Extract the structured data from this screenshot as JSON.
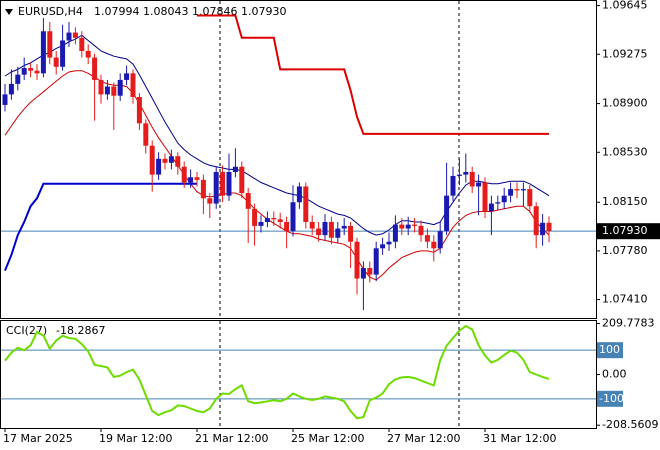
{
  "chart_data": [
    {
      "type": "candlestick",
      "title": "EURUSD,H4",
      "categories": [
        "17 Mar 2025",
        null,
        null,
        null,
        null,
        null,
        null,
        null,
        null,
        null,
        null,
        null,
        null,
        null,
        null,
        "19 Mar 12:00",
        null,
        null,
        null,
        null,
        null,
        null,
        null,
        null,
        null,
        null,
        null,
        null,
        null,
        null,
        "21 Mar 12:00",
        null,
        null,
        null,
        null,
        null,
        null,
        null,
        null,
        null,
        null,
        null,
        null,
        null,
        null,
        "25 Mar 12:00",
        null,
        null,
        null,
        null,
        null,
        null,
        null,
        null,
        null,
        null,
        null,
        null,
        null,
        null,
        "27 Mar 12:00",
        null,
        null,
        null,
        null,
        null,
        null,
        null,
        null,
        null,
        null,
        null,
        null,
        null,
        null,
        "31 Mar 12:00",
        null,
        null,
        null,
        null,
        null,
        null,
        null,
        null,
        null,
        null
      ],
      "open": [
        1.0889,
        1.0897,
        1.0905,
        1.0912,
        1.0917,
        1.0915,
        1.0913,
        1.0945,
        1.0925,
        1.0918,
        1.0938,
        1.0944,
        1.094,
        1.093,
        1.0925,
        1.0908,
        1.0897,
        1.0903,
        1.0896,
        1.0908,
        1.0913,
        1.0895,
        1.0875,
        1.0858,
        1.0836,
        1.0848,
        1.0845,
        1.085,
        1.0842,
        1.083,
        1.0834,
        1.0832,
        1.0818,
        1.0814,
        1.0838,
        1.082,
        1.0838,
        1.0842,
        1.0822,
        1.081,
        1.0797,
        1.08,
        1.0803,
        1.0802,
        1.08,
        1.0793,
        1.0815,
        1.0827,
        1.08,
        1.0795,
        1.079,
        1.08,
        1.0788,
        1.0795,
        1.0797,
        1.0785,
        1.0757,
        1.0765,
        1.076,
        1.078,
        1.0783,
        1.0785,
        1.0798,
        1.0795,
        1.0798,
        1.0797,
        1.079,
        1.0785,
        1.078,
        1.0793,
        1.082,
        1.0835,
        1.0836,
        1.0838,
        1.0827,
        1.083,
        1.0808,
        1.0814,
        1.0815,
        1.082,
        1.0825,
        1.0824,
        1.0825,
        1.0812,
        1.079,
        1.07994
      ],
      "high": [
        1.0905,
        1.0916,
        1.0918,
        1.0925,
        1.0921,
        1.092,
        1.0955,
        1.0952,
        1.093,
        1.095,
        1.0952,
        1.0948,
        1.0945,
        1.0935,
        1.0928,
        1.0912,
        1.0908,
        1.0906,
        1.0913,
        1.0919,
        1.0916,
        1.0898,
        1.0878,
        1.0862,
        1.0853,
        1.0852,
        1.0855,
        1.0853,
        1.0846,
        1.084,
        1.0838,
        1.0836,
        1.0822,
        1.0842,
        1.0843,
        1.0852,
        1.0856,
        1.0846,
        1.0826,
        1.0814,
        1.0805,
        1.0808,
        1.0808,
        1.0807,
        1.0804,
        1.0828,
        1.083,
        1.083,
        1.0805,
        1.08,
        1.0806,
        1.0804,
        1.08,
        1.0803,
        1.08,
        1.0788,
        1.077,
        1.077,
        1.0785,
        1.0788,
        1.0792,
        1.0805,
        1.0803,
        1.0804,
        1.0803,
        1.0801,
        1.0795,
        1.079,
        1.08,
        1.0845,
        1.0842,
        1.0848,
        1.0852,
        1.0842,
        1.0836,
        1.0834,
        1.082,
        1.082,
        1.0826,
        1.083,
        1.083,
        1.083,
        1.0828,
        1.0815,
        1.0806,
        1.08043
      ],
      "low": [
        1.0884,
        1.0893,
        1.09,
        1.0908,
        1.091,
        1.0908,
        1.091,
        1.092,
        1.0912,
        1.0915,
        1.0933,
        1.0935,
        1.0925,
        1.092,
        1.0877,
        1.089,
        1.0893,
        1.087,
        1.0892,
        1.0904,
        1.089,
        1.087,
        1.0852,
        1.0823,
        1.0832,
        1.084,
        1.084,
        1.0836,
        1.0826,
        1.0826,
        1.0827,
        1.0806,
        1.0803,
        1.081,
        1.0815,
        1.0816,
        1.0834,
        1.0818,
        1.0784,
        1.0782,
        1.0792,
        1.0796,
        1.0797,
        1.0795,
        1.078,
        1.0789,
        1.081,
        1.0795,
        1.079,
        1.0785,
        1.0786,
        1.0783,
        1.0784,
        1.079,
        1.0765,
        1.0745,
        1.0733,
        1.0754,
        1.0755,
        1.0775,
        1.0778,
        1.078,
        1.079,
        1.079,
        1.0792,
        1.0785,
        1.078,
        1.077,
        1.0776,
        1.079,
        1.0816,
        1.0828,
        1.083,
        1.0822,
        1.0805,
        1.0803,
        1.079,
        1.0809,
        1.081,
        1.0815,
        1.0818,
        1.0812,
        1.0807,
        1.078,
        1.0782,
        1.07846
      ],
      "close": [
        1.0897,
        1.0905,
        1.0912,
        1.0917,
        1.0915,
        1.0913,
        1.0945,
        1.0925,
        1.0918,
        1.0938,
        1.0944,
        1.094,
        1.093,
        1.0925,
        1.0908,
        1.0897,
        1.0903,
        1.0896,
        1.0908,
        1.0913,
        1.0895,
        1.0875,
        1.0858,
        1.0836,
        1.0848,
        1.0845,
        1.085,
        1.0842,
        1.083,
        1.0834,
        1.0832,
        1.0818,
        1.0814,
        1.0838,
        1.082,
        1.0838,
        1.0842,
        1.0822,
        1.081,
        1.0797,
        1.08,
        1.0803,
        1.0802,
        1.08,
        1.0793,
        1.0815,
        1.0827,
        1.08,
        1.0795,
        1.079,
        1.08,
        1.0788,
        1.0795,
        1.0797,
        1.0785,
        1.0757,
        1.0765,
        1.076,
        1.078,
        1.0783,
        1.0785,
        1.0798,
        1.0795,
        1.0798,
        1.0797,
        1.079,
        1.0785,
        1.078,
        1.0793,
        1.082,
        1.0835,
        1.0836,
        1.0838,
        1.0827,
        1.083,
        1.0808,
        1.0814,
        1.0815,
        1.082,
        1.0825,
        1.0824,
        1.0825,
        1.0812,
        1.079,
        1.07994,
        1.0793
      ],
      "up_color": "#1a1ab0",
      "down_color": "#e51c1c",
      "lines": [
        {
          "color": "#00008b",
          "width": 1,
          "values": [
            1.0911,
            1.0914,
            1.0916,
            1.0919,
            1.0921,
            1.0924,
            1.0927,
            1.0929,
            1.0932,
            1.0934,
            1.0937,
            1.0939,
            1.0942,
            1.0938,
            1.0934,
            1.093,
            1.0928,
            1.0926,
            1.0925,
            1.0924,
            1.092,
            1.0912,
            1.0903,
            1.0894,
            1.0885,
            1.0876,
            1.0868,
            1.086,
            1.0855,
            1.0851,
            1.0848,
            1.0845,
            1.0843,
            1.0842,
            1.0841,
            1.084,
            1.084,
            1.0839,
            1.0836,
            1.0833,
            1.083,
            1.0828,
            1.0826,
            1.0824,
            1.0822,
            1.0821,
            1.082,
            1.0818,
            1.0815,
            1.0812,
            1.081,
            1.0808,
            1.0806,
            1.0805,
            1.0803,
            1.0799,
            1.0795,
            1.0792,
            1.079,
            1.0791,
            1.0794,
            1.0798,
            1.0801,
            1.0801,
            1.08,
            1.08,
            1.0799,
            1.0798,
            1.08,
            1.0808,
            1.0815,
            1.0822,
            1.0828,
            1.0831,
            1.0831,
            1.083,
            1.0829,
            1.0829,
            1.083,
            1.0831,
            1.0831,
            1.0831,
            1.0829,
            1.0826,
            1.0823,
            1.082
          ]
        },
        {
          "color": "#d00000",
          "width": 1,
          "values": [
            1.0866,
            1.0873,
            1.088,
            1.0886,
            1.0891,
            1.0895,
            1.0899,
            1.0903,
            1.0907,
            1.0911,
            1.0914,
            1.0915,
            1.0915,
            1.0913,
            1.091,
            1.0907,
            1.0905,
            1.0904,
            1.0904,
            1.0903,
            1.0898,
            1.089,
            1.0881,
            1.0872,
            1.0864,
            1.0857,
            1.085,
            1.0843,
            1.0836,
            1.0829,
            1.0823,
            1.082,
            1.0819,
            1.082,
            1.0821,
            1.0822,
            1.0822,
            1.082,
            1.0815,
            1.081,
            1.0806,
            1.0802,
            1.0799,
            1.0796,
            1.0793,
            1.0791,
            1.0791,
            1.079,
            1.0789,
            1.0787,
            1.0786,
            1.0785,
            1.0784,
            1.0783,
            1.078,
            1.0772,
            1.0764,
            1.0758,
            1.0756,
            1.076,
            1.0765,
            1.0769,
            1.0773,
            1.0775,
            1.0777,
            1.0778,
            1.0778,
            1.0777,
            1.078,
            1.0788,
            1.0796,
            1.0801,
            1.0805,
            1.0807,
            1.0808,
            1.0808,
            1.0808,
            1.0809,
            1.081,
            1.0811,
            1.0812,
            1.0812,
            1.0808,
            1.08,
            1.0795,
            1.079
          ]
        },
        {
          "color": "#dd0000",
          "width": 2,
          "values": [
            null,
            null,
            null,
            null,
            null,
            null,
            null,
            null,
            null,
            null,
            null,
            null,
            null,
            null,
            null,
            null,
            null,
            null,
            null,
            null,
            null,
            null,
            null,
            null,
            null,
            null,
            null,
            null,
            null,
            null,
            1.0957,
            1.0957,
            1.0957,
            1.0957,
            1.0957,
            1.0957,
            1.0957,
            1.094,
            1.094,
            1.094,
            1.094,
            1.094,
            1.094,
            1.0916,
            1.0916,
            1.0916,
            1.0916,
            1.0916,
            1.0916,
            1.0916,
            1.0916,
            1.0916,
            1.0916,
            1.0916,
            1.09,
            1.088,
            1.0867,
            1.0867,
            1.0867,
            1.0867,
            1.0867,
            1.0867,
            1.0867,
            1.0867,
            1.0867,
            1.0867,
            1.0867,
            1.0867,
            1.0867,
            1.0867,
            1.0867,
            1.0867,
            1.0867,
            1.0867,
            1.0867,
            1.0867,
            1.0867,
            1.0867,
            1.0867,
            1.0867,
            1.0867,
            1.0867,
            1.0867,
            1.0867,
            1.0867,
            1.0867
          ]
        },
        {
          "color": "#0000cc",
          "width": 2,
          "values": [
            1.0763,
            1.0775,
            1.079,
            1.08,
            1.0812,
            1.0818,
            1.0829,
            1.0829,
            1.0829,
            1.0829,
            1.0829,
            1.0829,
            1.0829,
            1.0829,
            1.0829,
            1.0829,
            1.0829,
            1.0829,
            1.0829,
            1.0829,
            1.0829,
            1.0829,
            1.0829,
            1.0829,
            1.0829,
            1.0829,
            1.0829,
            1.0829,
            1.0829,
            1.0829,
            1.0829,
            null,
            null,
            null,
            null,
            null,
            null,
            null,
            null,
            null,
            null,
            null,
            null,
            null,
            null,
            null,
            null,
            null,
            null,
            null,
            null,
            null,
            null,
            null,
            null,
            null,
            null,
            null,
            null,
            null,
            null,
            null,
            null,
            null,
            null,
            null,
            null,
            null,
            null,
            null,
            null,
            null,
            null,
            null,
            null,
            null,
            null,
            null,
            null,
            null,
            null,
            null,
            null,
            null,
            null,
            null
          ]
        }
      ],
      "ylim": [
        1.0727,
        1.0968
      ],
      "yticks": [
        1.09645,
        1.09275,
        {
          "value": 1.089,
          "label": "1.08900"
        },
        {
          "value": 1.0853,
          "label": "1.08530"
        },
        {
          "value": 1.0815,
          "label": "1.08150"
        },
        {
          "value": 1.0778,
          "label": "1.07780"
        },
        {
          "value": 1.0741,
          "label": "1.07410"
        }
      ],
      "current_price": {
        "value": 1.0793,
        "label": "1.07930"
      }
    },
    {
      "type": "line",
      "title": "CCI(27)",
      "color": "#6fdc00",
      "values": [
        57,
        90,
        110,
        100,
        120,
        175,
        160,
        106,
        140,
        159,
        150,
        147,
        125,
        95,
        40,
        35,
        29,
        -10,
        -5,
        10,
        20,
        -20,
        -86,
        -150,
        -167,
        -155,
        -147,
        -127,
        -130,
        -140,
        -150,
        -155,
        -140,
        -100,
        -78,
        -80,
        -60,
        -45,
        -110,
        -118,
        -115,
        -110,
        -106,
        -110,
        -100,
        -78,
        -90,
        -100,
        -105,
        -100,
        -90,
        -95,
        -100,
        -110,
        -150,
        -180,
        -175,
        -106,
        -95,
        -78,
        -40,
        -20,
        -12,
        -10,
        -15,
        -25,
        -35,
        -45,
        60,
        118,
        150,
        180,
        200,
        185,
        120,
        78,
        49,
        60,
        80,
        98,
        90,
        60,
        10,
        0,
        -10,
        -18.2867
      ],
      "ylim": [
        -220,
        220
      ],
      "yticks": [
        209.7783,
        {
          "value": 0,
          "label": "0.00"
        },
        -208.5609
      ],
      "levels": [
        100,
        -100
      ]
    }
  ]
}
